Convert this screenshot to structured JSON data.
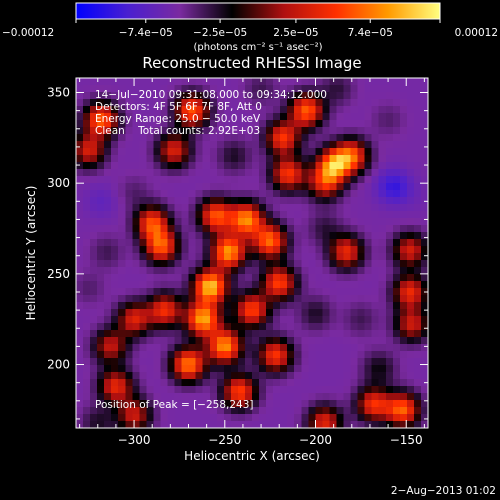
{
  "chart_data": {
    "type": "heatmap",
    "title": "Reconstructed RHESSI Image",
    "xlabel": "Heliocentric X (arcsec)",
    "ylabel": "Heliocentric Y (arcsec)",
    "xlim": [
      -332,
      -138
    ],
    "ylim": [
      165,
      358
    ],
    "xticks": [
      -300,
      -250,
      -200,
      -150
    ],
    "xtick_labels": [
      "−300",
      "−250",
      "−200",
      "−150"
    ],
    "yticks": [
      200,
      250,
      300,
      350
    ],
    "ytick_labels": [
      "200",
      "250",
      "300",
      "350"
    ],
    "colorbar": {
      "range": [
        -0.00012,
        0.00012
      ],
      "ticks": [
        -0.00012,
        -7.4e-05,
        -2.5e-05,
        2.5e-05,
        7.4e-05,
        0.00012
      ],
      "tick_labels": [
        "−0.00012",
        "−7.4e−05",
        "−2.5e−05",
        "2.5e−05",
        "7.4e−05",
        "0.00012"
      ],
      "unit_label": "(photons cm⁻² s⁻¹ asec⁻²)",
      "colors": [
        "#0000ff",
        "#4a1fd0",
        "#7a2aa0",
        "#000000",
        "#b01010",
        "#ff3000",
        "#ff9a00",
        "#ffff80"
      ]
    },
    "annotations": [
      "14−Jul−2010 09:31:08.000 to 09:34:12.000",
      "Detectors: 4F 5F 6F 7F 8F, Att 0",
      "Energy Range: 25.0 − 50.0 keV",
      "Clean    Total counts: 2.92E+03"
    ],
    "peak_label": "Position of Peak = [−258,243]",
    "peak": [
      -258,
      243
    ],
    "blobs": [
      {
        "x": -258,
        "y": 243,
        "v": 0.0001
      },
      {
        "x": -248,
        "y": 262,
        "v": 8.5e-05
      },
      {
        "x": -262,
        "y": 225,
        "v": 8.8e-05
      },
      {
        "x": -250,
        "y": 210,
        "v": 8.2e-05
      },
      {
        "x": -270,
        "y": 200,
        "v": 7.5e-05
      },
      {
        "x": -238,
        "y": 280,
        "v": 7.8e-05
      },
      {
        "x": -255,
        "y": 282,
        "v": 6e-05
      },
      {
        "x": -285,
        "y": 265,
        "v": 6e-05
      },
      {
        "x": -290,
        "y": 278,
        "v": 5.5e-05
      },
      {
        "x": -225,
        "y": 268,
        "v": 6.8e-05
      },
      {
        "x": -220,
        "y": 245,
        "v": 5.5e-05
      },
      {
        "x": -235,
        "y": 230,
        "v": 5.5e-05
      },
      {
        "x": -222,
        "y": 205,
        "v": 5e-05
      },
      {
        "x": -242,
        "y": 185,
        "v": 5.5e-05
      },
      {
        "x": -283,
        "y": 230,
        "v": 4.5e-05
      },
      {
        "x": -300,
        "y": 225,
        "v": 3.5e-05
      },
      {
        "x": -190,
        "y": 310,
        "v": 7e-05
      },
      {
        "x": -180,
        "y": 315,
        "v": 5.5e-05
      },
      {
        "x": -195,
        "y": 300,
        "v": 3.5e-05
      },
      {
        "x": -205,
        "y": 340,
        "v": 6.5e-05
      },
      {
        "x": -218,
        "y": 325,
        "v": 5e-05
      },
      {
        "x": -215,
        "y": 305,
        "v": 5e-05
      },
      {
        "x": -268,
        "y": 340,
        "v": 6.2e-05
      },
      {
        "x": -278,
        "y": 318,
        "v": 3.5e-05
      },
      {
        "x": -318,
        "y": 335,
        "v": 6.5e-05
      },
      {
        "x": -325,
        "y": 318,
        "v": 3.2e-05
      },
      {
        "x": -183,
        "y": 262,
        "v": 4.2e-05
      },
      {
        "x": -148,
        "y": 263,
        "v": 3.2e-05
      },
      {
        "x": -148,
        "y": 240,
        "v": 4.2e-05
      },
      {
        "x": -147,
        "y": 222,
        "v": 2.8e-05
      },
      {
        "x": -152,
        "y": 175,
        "v": 6.5e-05
      },
      {
        "x": -168,
        "y": 178,
        "v": 4.5e-05
      },
      {
        "x": -195,
        "y": 168,
        "v": 3.8e-05
      },
      {
        "x": -310,
        "y": 188,
        "v": 4e-05
      },
      {
        "x": -300,
        "y": 172,
        "v": 2.8e-05
      },
      {
        "x": -313,
        "y": 210,
        "v": 2.5e-05
      },
      {
        "x": -175,
        "y": 225,
        "v": -3.5e-05
      },
      {
        "x": -200,
        "y": 228,
        "v": -2.5e-05
      },
      {
        "x": -157,
        "y": 298,
        "v": -9.5e-05
      },
      {
        "x": -145,
        "y": 292,
        "v": -6e-05
      },
      {
        "x": -318,
        "y": 290,
        "v": -7e-05
      },
      {
        "x": -300,
        "y": 295,
        "v": -4e-05
      },
      {
        "x": -315,
        "y": 262,
        "v": -3.5e-05
      },
      {
        "x": -325,
        "y": 242,
        "v": -4e-05
      },
      {
        "x": -230,
        "y": 352,
        "v": -3.5e-05
      },
      {
        "x": -188,
        "y": 352,
        "v": -3e-05
      },
      {
        "x": -195,
        "y": 275,
        "v": -3e-05
      },
      {
        "x": -245,
        "y": 315,
        "v": -2.5e-05
      },
      {
        "x": -320,
        "y": 168,
        "v": -2.5e-05
      },
      {
        "x": -165,
        "y": 198,
        "v": -2e-05
      },
      {
        "x": -160,
        "y": 335,
        "v": -4e-05
      }
    ]
  },
  "footer": {
    "date_stamp": "2−Aug−2013 01:02"
  }
}
